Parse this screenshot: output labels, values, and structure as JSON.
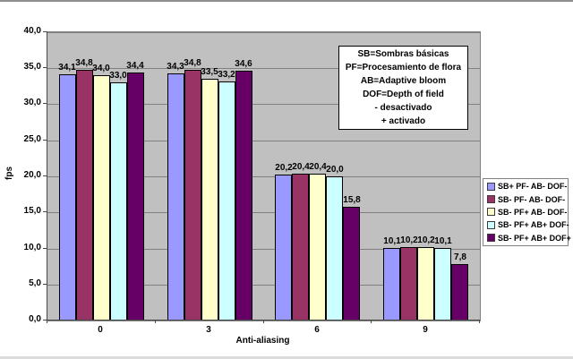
{
  "chart_data": {
    "type": "bar",
    "title": "",
    "xlabel": "Anti-aliasing",
    "ylabel": "fps",
    "categories": [
      "0",
      "3",
      "6",
      "9"
    ],
    "series": [
      {
        "name": "SB+ PF- AB- DOF-",
        "color": "#9999FF",
        "values": [
          34.1,
          34.3,
          20.2,
          10.1
        ]
      },
      {
        "name": "SB- PF- AB- DOF-",
        "color": "#993366",
        "values": [
          34.8,
          34.8,
          20.4,
          10.2
        ]
      },
      {
        "name": "SB- PF+ AB- DOF-",
        "color": "#FFFFCC",
        "values": [
          34.0,
          33.5,
          20.4,
          10.2
        ]
      },
      {
        "name": "SB- PF+ AB+ DOF-",
        "color": "#CCFFFF",
        "values": [
          33.0,
          33.2,
          20.0,
          10.1
        ]
      },
      {
        "name": "SB- PF+ AB+ DOF+",
        "color": "#660066",
        "values": [
          34.4,
          34.6,
          15.8,
          7.8
        ]
      }
    ],
    "ylim": [
      0,
      40
    ],
    "ytick_step": 5,
    "ytick_labels": [
      "0,0",
      "5,0",
      "10,0",
      "15,0",
      "20,0",
      "25,0",
      "30,0",
      "35,0",
      "40,0"
    ],
    "decimal_separator": ",",
    "grid": true,
    "legend_position": "right",
    "colors": {
      "plot_background": "#C0C0C0",
      "gridline": "#808080",
      "bar_border": "#000000",
      "chart_background": "#FFFFFF"
    }
  },
  "annotation": {
    "lines": [
      "SB=Sombras básicas",
      "PF=Procesamiento de flora",
      "AB=Adaptive bloom",
      "DOF=Depth of field",
      "- desactivado",
      "+ activado"
    ]
  }
}
